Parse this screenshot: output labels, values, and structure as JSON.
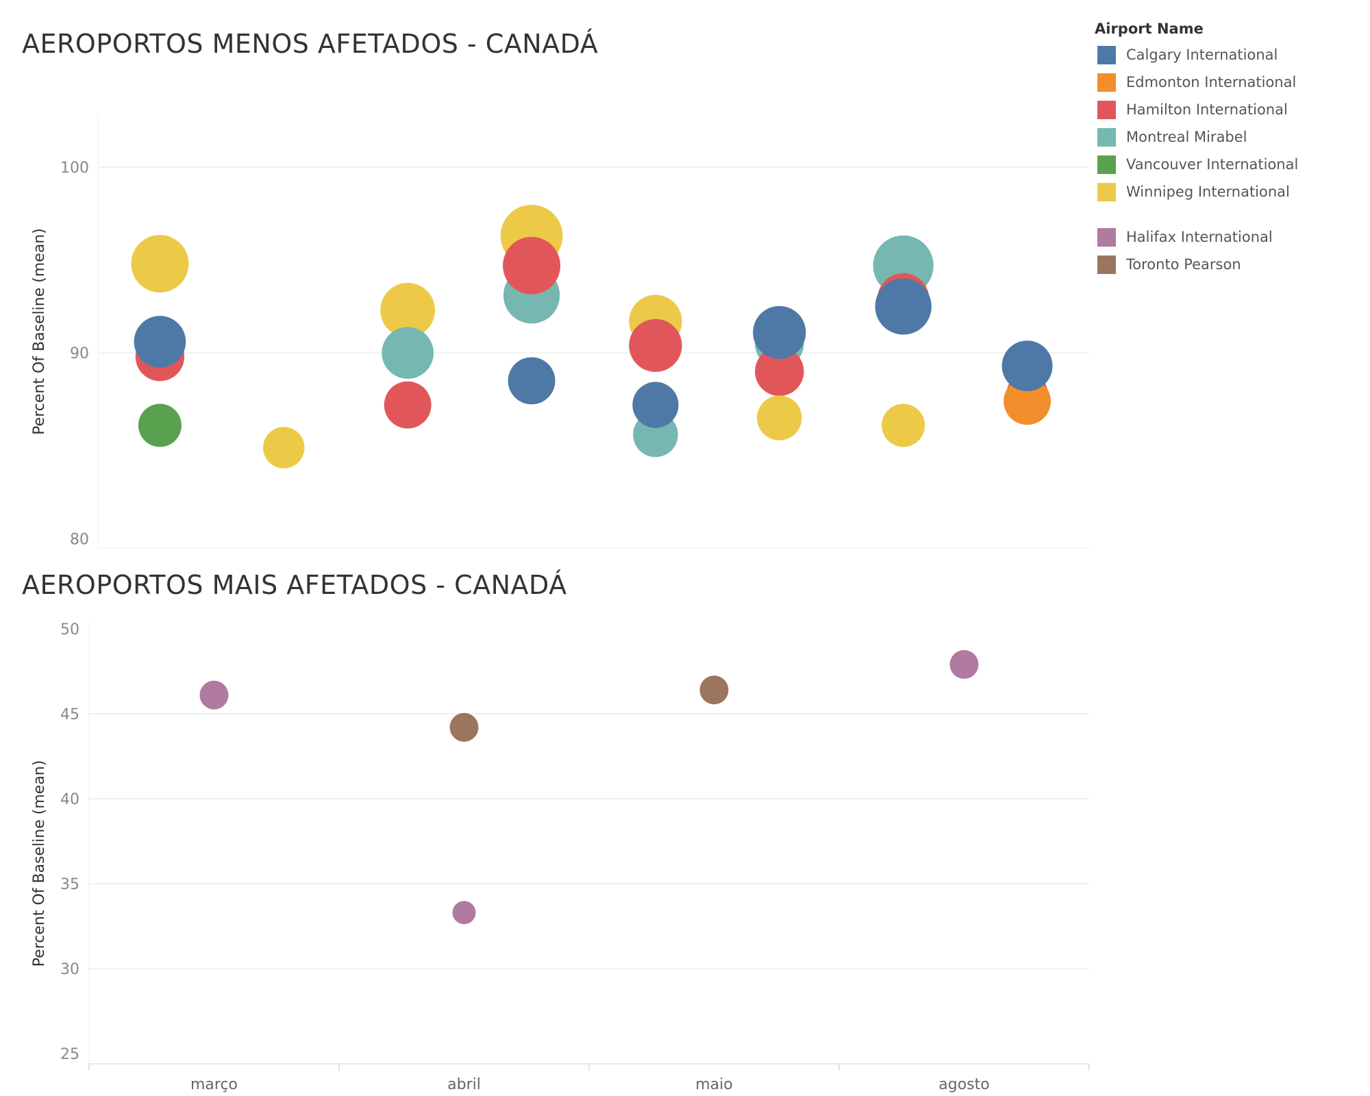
{
  "legend": {
    "title": "Airport Name",
    "groups": [
      [
        {
          "name": "Calgary International",
          "color": "#4e79a7"
        },
        {
          "name": "Edmonton International",
          "color": "#f28e2b"
        },
        {
          "name": "Hamilton International",
          "color": "#e15759"
        },
        {
          "name": "Montreal Mirabel",
          "color": "#76b7b2"
        },
        {
          "name": "Vancouver International",
          "color": "#59a14f"
        },
        {
          "name": "Winnipeg International",
          "color": "#edc948"
        }
      ],
      [
        {
          "name": "Halifax International",
          "color": "#b07aa1"
        },
        {
          "name": "Toronto Pearson",
          "color": "#9c755f"
        }
      ]
    ]
  },
  "chart_data": [
    {
      "type": "scatter",
      "title": "AEROPORTOS MENOS AFETADOS - CANADÁ",
      "xlabel": "",
      "ylabel": "Percent Of Baseline (mean)",
      "ylim": [
        79.5,
        102.8
      ],
      "yticks": [
        80,
        90,
        100
      ],
      "grid": true,
      "legend_position": "top-right",
      "x_positions": 8,
      "points": [
        {
          "x": 0,
          "y": 89.8,
          "series": "Hamilton International",
          "size": 0.85
        },
        {
          "x": 0,
          "y": 94.8,
          "series": "Winnipeg International",
          "size": 1.0
        },
        {
          "x": 0,
          "y": 90.6,
          "series": "Calgary International",
          "size": 0.9
        },
        {
          "x": 0,
          "y": 86.1,
          "series": "Vancouver International",
          "size": 0.75
        },
        {
          "x": 1,
          "y": 84.9,
          "series": "Winnipeg International",
          "size": 0.72
        },
        {
          "x": 2,
          "y": 92.3,
          "series": "Winnipeg International",
          "size": 0.95
        },
        {
          "x": 2,
          "y": 90.0,
          "series": "Montreal Mirabel",
          "size": 0.9
        },
        {
          "x": 2,
          "y": 87.2,
          "series": "Hamilton International",
          "size": 0.82
        },
        {
          "x": 3,
          "y": 96.3,
          "series": "Winnipeg International",
          "size": 1.08
        },
        {
          "x": 3,
          "y": 93.1,
          "series": "Montreal Mirabel",
          "size": 0.98
        },
        {
          "x": 3,
          "y": 94.7,
          "series": "Hamilton International",
          "size": 1.0
        },
        {
          "x": 3,
          "y": 88.5,
          "series": "Calgary International",
          "size": 0.82
        },
        {
          "x": 4,
          "y": 91.7,
          "series": "Winnipeg International",
          "size": 0.92
        },
        {
          "x": 4,
          "y": 90.4,
          "series": "Hamilton International",
          "size": 0.92
        },
        {
          "x": 4,
          "y": 85.6,
          "series": "Montreal Mirabel",
          "size": 0.78
        },
        {
          "x": 4,
          "y": 87.2,
          "series": "Calgary International",
          "size": 0.8
        },
        {
          "x": 5,
          "y": 90.5,
          "series": "Montreal Mirabel",
          "size": 0.85
        },
        {
          "x": 5,
          "y": 89.0,
          "series": "Hamilton International",
          "size": 0.85
        },
        {
          "x": 5,
          "y": 86.5,
          "series": "Winnipeg International",
          "size": 0.78
        },
        {
          "x": 5,
          "y": 91.1,
          "series": "Calgary International",
          "size": 0.92
        },
        {
          "x": 6,
          "y": 94.7,
          "series": "Montreal Mirabel",
          "size": 1.05
        },
        {
          "x": 6,
          "y": 92.9,
          "series": "Hamilton International",
          "size": 0.9
        },
        {
          "x": 6,
          "y": 92.5,
          "series": "Calgary International",
          "size": 0.98
        },
        {
          "x": 6,
          "y": 86.1,
          "series": "Winnipeg International",
          "size": 0.75
        },
        {
          "x": 7,
          "y": 87.8,
          "series": "Hamilton International",
          "size": 0.72
        },
        {
          "x": 7,
          "y": 87.4,
          "series": "Edmonton International",
          "size": 0.82
        },
        {
          "x": 7,
          "y": 89.3,
          "series": "Calgary International",
          "size": 0.88
        }
      ]
    },
    {
      "type": "scatter",
      "title": "AEROPORTOS MAIS AFETADOS - CANADÁ",
      "xlabel": "",
      "ylabel": "Percent Of Baseline (mean)",
      "ylim": [
        24.4,
        50.4
      ],
      "yticks": [
        25,
        30,
        35,
        40,
        45,
        50
      ],
      "grid": true,
      "categories": [
        "março",
        "abril",
        "maio",
        "agosto"
      ],
      "points": [
        {
          "x": "março",
          "y": 46.1,
          "series": "Halifax International"
        },
        {
          "x": "abril",
          "y": 44.2,
          "series": "Toronto Pearson"
        },
        {
          "x": "abril",
          "y": 33.3,
          "series": "Halifax International"
        },
        {
          "x": "maio",
          "y": 46.4,
          "series": "Toronto Pearson"
        },
        {
          "x": "agosto",
          "y": 47.9,
          "series": "Halifax International"
        }
      ]
    }
  ]
}
